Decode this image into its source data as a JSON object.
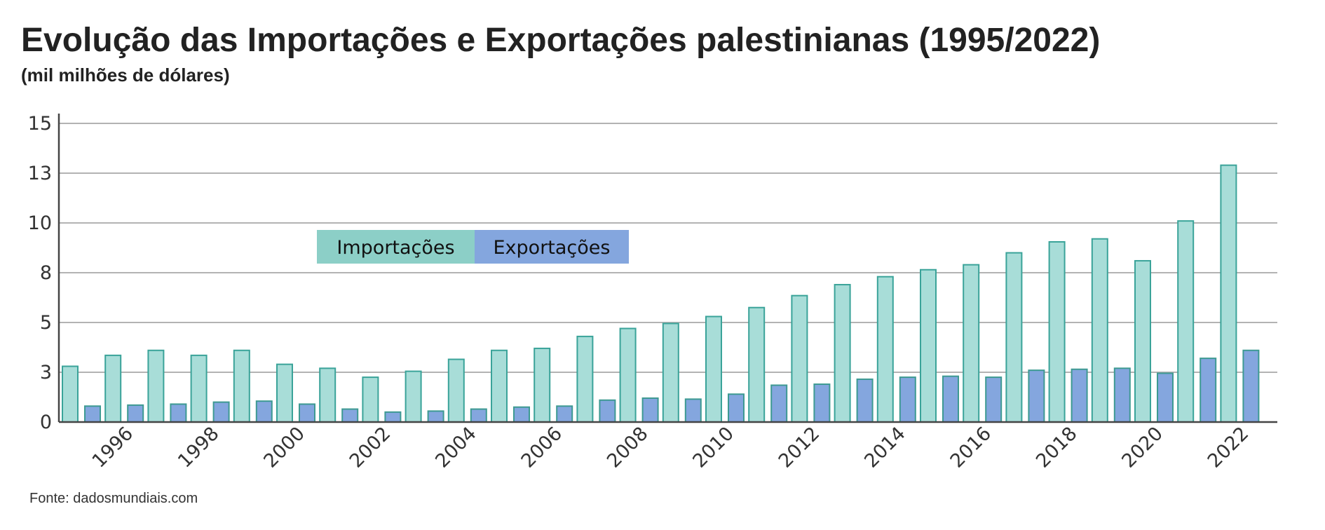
{
  "header": {
    "title": "Evolução das Importações e Exportações palestinianas (1995/2022)",
    "subtitle": "(mil milhões de dólares)"
  },
  "footer": {
    "source": "Fonte: dadosmundiais.com"
  },
  "colors": {
    "imports_fill": "#a8ddd8",
    "imports_stroke": "#3aa399",
    "exports_fill": "#84a6de",
    "exports_stroke": "#3d9a92",
    "legend_imports": "#8ccfc7",
    "legend_exports": "#84a6de",
    "grid": "#b3b3b3",
    "axis": "#444444"
  },
  "chart_data": {
    "type": "bar",
    "title": "Evolução das Importações e Exportações palestinianas (1995/2022)",
    "subtitle": "(mil milhões de dólares)",
    "xlabel": "",
    "ylabel": "",
    "ylim": [
      0,
      15
    ],
    "y_ticks": [
      0,
      2.5,
      5,
      7.5,
      10,
      12.5,
      15
    ],
    "y_tick_labels": [
      "0",
      "3",
      "5",
      "8",
      "10",
      "13",
      "15"
    ],
    "x_tick_labels": [
      "1996",
      "1998",
      "2000",
      "2002",
      "2004",
      "2006",
      "2008",
      "2010",
      "2012",
      "2014",
      "2016",
      "2018",
      "2020",
      "2022"
    ],
    "grid": true,
    "legend": "inside-top-left",
    "categories": [
      "1995",
      "1996",
      "1997",
      "1998",
      "1999",
      "2000",
      "2001",
      "2002",
      "2003",
      "2004",
      "2005",
      "2006",
      "2007",
      "2008",
      "2009",
      "2010",
      "2011",
      "2012",
      "2013",
      "2014",
      "2015",
      "2016",
      "2017",
      "2018",
      "2019",
      "2020",
      "2021",
      "2022"
    ],
    "series": [
      {
        "name": "Importações",
        "values": [
          2.8,
          3.35,
          3.6,
          3.35,
          3.6,
          2.9,
          2.7,
          2.25,
          2.55,
          3.15,
          3.6,
          3.7,
          4.3,
          4.7,
          4.95,
          5.3,
          5.75,
          6.35,
          6.9,
          7.3,
          7.65,
          7.9,
          8.5,
          9.05,
          9.2,
          8.1,
          10.1,
          12.9
        ]
      },
      {
        "name": "Exportações",
        "values": [
          0.8,
          0.85,
          0.9,
          1.0,
          1.05,
          0.9,
          0.65,
          0.5,
          0.55,
          0.65,
          0.75,
          0.8,
          1.1,
          1.2,
          1.15,
          1.4,
          1.85,
          1.9,
          2.15,
          2.25,
          2.3,
          2.25,
          2.6,
          2.65,
          2.7,
          2.45,
          3.2,
          3.6
        ]
      }
    ]
  }
}
